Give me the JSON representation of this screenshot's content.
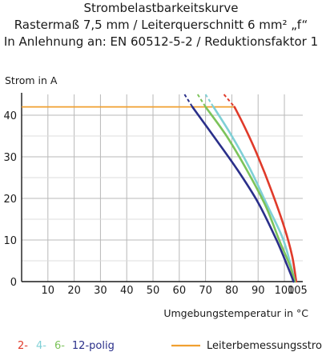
{
  "header": {
    "line1": "Strombelastbarkeitskurve",
    "line2": "Rastermaß 7,5 mm / Leiterquerschnitt 6 mm² „f“",
    "line3": "In Anlehnung an: EN 60512-5-2 / Reduktionsfaktor 1"
  },
  "chart_data": {
    "type": "line",
    "ylabel": "Strom in A",
    "xlabel": "Umgebungstemperatur in °C",
    "xlim": [
      0,
      107
    ],
    "ylim": [
      0,
      45
    ],
    "x_ticks": [
      "10",
      "20",
      "30",
      "40",
      "50",
      "60",
      "70",
      "80",
      "90",
      "100",
      "105"
    ],
    "y_ticks": [
      "0",
      "10",
      "20",
      "30",
      "40"
    ],
    "grid": true,
    "rated_current": {
      "name": "Leiterbemessungsstrom",
      "value": 42,
      "color": "#f0a030"
    },
    "series": [
      {
        "name": "2-",
        "color": "#e03a2a",
        "dashed": [
          [
            77,
            45
          ],
          [
            81,
            42
          ]
        ],
        "points": [
          [
            81,
            42
          ],
          [
            85,
            37
          ],
          [
            90,
            30
          ],
          [
            95,
            22
          ],
          [
            100,
            13
          ],
          [
            103,
            6
          ],
          [
            104.5,
            0
          ]
        ]
      },
      {
        "name": "4-",
        "color": "#7fd0d6",
        "dashed": [
          [
            70,
            45
          ],
          [
            73,
            42
          ]
        ],
        "points": [
          [
            73,
            42
          ],
          [
            80,
            35
          ],
          [
            87,
            27
          ],
          [
            93,
            19
          ],
          [
            99,
            11
          ],
          [
            102,
            5
          ],
          [
            104,
            0
          ]
        ]
      },
      {
        "name": "6-",
        "color": "#7cc35a",
        "dashed": [
          [
            67,
            45
          ],
          [
            70,
            42
          ]
        ],
        "points": [
          [
            70,
            42
          ],
          [
            78,
            35
          ],
          [
            86,
            26.5
          ],
          [
            93,
            18
          ],
          [
            98,
            10
          ],
          [
            102,
            4
          ],
          [
            104,
            0
          ]
        ]
      },
      {
        "name": "12-",
        "color": "#2a2f8a",
        "dashed": [
          [
            62,
            45
          ],
          [
            65,
            42
          ]
        ],
        "points": [
          [
            65,
            42
          ],
          [
            73,
            35
          ],
          [
            82,
            27
          ],
          [
            90,
            19
          ],
          [
            97,
            10
          ],
          [
            101,
            4
          ],
          [
            103.5,
            0
          ]
        ]
      }
    ],
    "legend": {
      "placement": "bottom",
      "suffix": "polig"
    }
  }
}
